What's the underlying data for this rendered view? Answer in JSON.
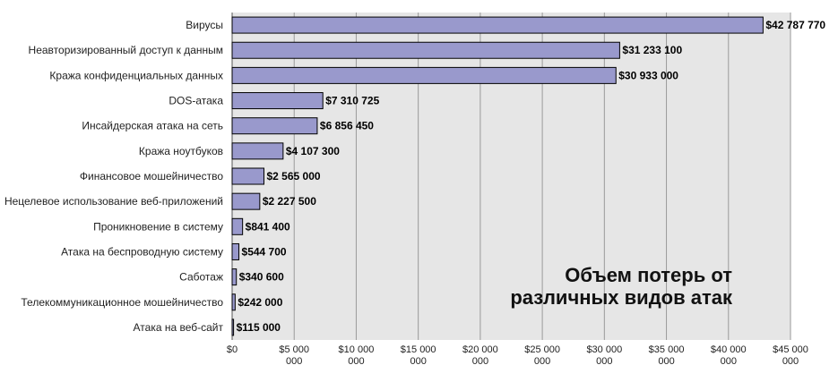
{
  "chart_data": {
    "type": "bar",
    "orientation": "horizontal",
    "title_lines": [
      "Объем потерь от",
      "различных видов атак"
    ],
    "categories": [
      "Вирусы",
      "Неавторизированный доступ к данным",
      "Кража конфиденциальных данных",
      "DOS-атака",
      "Инсайдерская атака на сеть",
      "Кража ноутбуков",
      "Финансовое мошейничество",
      "Нецелевое использование веб-приложений",
      "Проникновение в систему",
      "Атака на беспроводную систему",
      "Саботаж",
      "Телекоммуникационное мошейничество",
      "Атака на веб-сайт"
    ],
    "values": [
      42787770,
      31233100,
      30933000,
      7310725,
      6856450,
      4107300,
      2565000,
      2227500,
      841400,
      544700,
      340600,
      242000,
      115000
    ],
    "value_labels": [
      "$42 787 770",
      "$31 233 100",
      "$30 933 000",
      "$7 310 725",
      "$6 856 450",
      "$4 107 300",
      "$2 565 000",
      "$2 227 500",
      "$841 400",
      "$544 700",
      "$340 600",
      "$242 000",
      "$115 000"
    ],
    "xlim": [
      0,
      45000000
    ],
    "x_ticks": [
      0,
      5000000,
      10000000,
      15000000,
      20000000,
      25000000,
      30000000,
      35000000,
      40000000,
      45000000
    ],
    "x_tick_labels": [
      [
        "$0"
      ],
      [
        "$5 000",
        "000"
      ],
      [
        "$10 000",
        "000"
      ],
      [
        "$15 000",
        "000"
      ],
      [
        "$20 000",
        "000"
      ],
      [
        "$25 000",
        "000"
      ],
      [
        "$30 000",
        "000"
      ],
      [
        "$35 000",
        "000"
      ],
      [
        "$40 000",
        "000"
      ],
      [
        "$45 000",
        "000"
      ]
    ],
    "grid": true,
    "colors": {
      "bar_fill": "#9999cc",
      "bar_stroke": "#000000",
      "plot_background": "#e6e6e6",
      "grid": "#9a9a9a"
    }
  }
}
